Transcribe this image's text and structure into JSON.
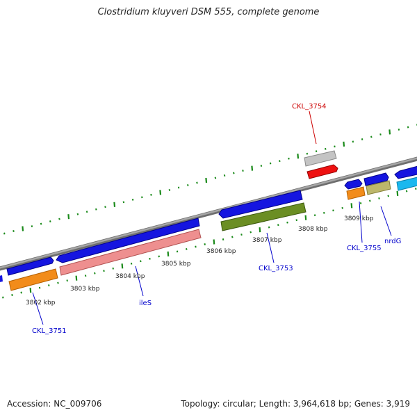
{
  "title": "Clostridium kluyveri DSM 555, complete genome",
  "footer": {
    "accession": "Accession: NC_009706",
    "summary": "Topology: circular; Length: 3,964,618 bp; Genes: 3,919"
  },
  "colors": {
    "backbone": "#8c8c8c",
    "ticks": "#1a8a1a",
    "label_blue": "#0000cc",
    "label_red": "#cc0000"
  },
  "tick_labels": [
    "3802 kbp",
    "3803 kbp",
    "3804 kbp",
    "3805 kbp",
    "3806 kbp",
    "3807 kbp",
    "3808 kbp",
    "3809 kbp"
  ],
  "gene_labels": [
    "CKL_3751",
    "ileS",
    "CKL_3753",
    "CKL_3754",
    "CKL_3755",
    "nrdG"
  ]
}
